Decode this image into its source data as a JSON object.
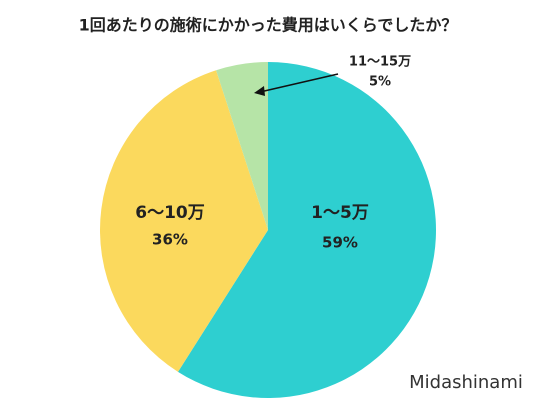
{
  "chart_data": {
    "type": "pie",
    "title": "1回あたりの施術にかかった費用はいくらでしたか？",
    "categories": [
      "1〜5万",
      "6〜10万",
      "11〜15万"
    ],
    "values": [
      59,
      36,
      5
    ],
    "value_labels": [
      "59%",
      "36%",
      "5%"
    ],
    "colors": [
      "#2ecfd0",
      "#fbd95d",
      "#b6e4a7"
    ],
    "watermark": "Midashinami"
  }
}
